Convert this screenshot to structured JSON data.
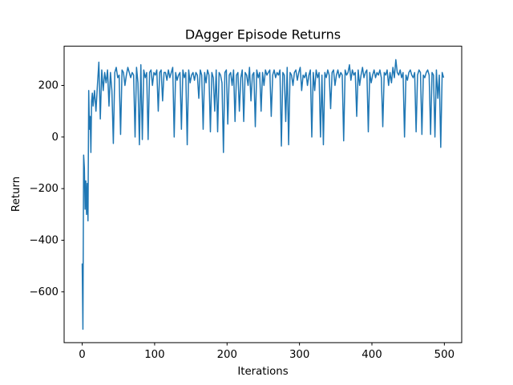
{
  "chart_data": {
    "type": "line",
    "title": "DAgger Episode Returns",
    "x_label": "Iterations",
    "y_label": "Return",
    "color": "#1f77b4",
    "x": [
      0,
      1,
      2,
      3,
      4,
      5,
      6,
      7,
      8,
      9,
      10,
      11,
      12,
      13,
      14,
      15,
      17,
      19,
      21,
      23,
      25,
      27,
      29,
      31,
      33,
      35,
      37,
      39,
      41,
      43,
      45,
      47,
      49,
      51,
      53,
      55,
      57,
      59,
      61,
      63,
      65,
      67,
      69,
      71,
      73,
      75,
      77,
      79,
      81,
      83,
      85,
      87,
      89,
      91,
      93,
      95,
      97,
      99,
      101,
      103,
      105,
      107,
      109,
      111,
      113,
      115,
      117,
      119,
      121,
      123,
      125,
      127,
      129,
      131,
      133,
      135,
      137,
      139,
      141,
      143,
      145,
      147,
      149,
      151,
      153,
      155,
      157,
      159,
      161,
      163,
      165,
      167,
      169,
      171,
      173,
      175,
      177,
      179,
      181,
      183,
      185,
      187,
      189,
      191,
      193,
      195,
      197,
      199,
      201,
      203,
      205,
      207,
      209,
      211,
      213,
      215,
      217,
      219,
      221,
      223,
      225,
      227,
      229,
      231,
      233,
      235,
      237,
      239,
      241,
      243,
      245,
      247,
      249,
      251,
      253,
      255,
      257,
      259,
      261,
      263,
      265,
      267,
      269,
      271,
      273,
      275,
      277,
      279,
      281,
      283,
      285,
      287,
      289,
      291,
      293,
      295,
      297,
      299,
      301,
      303,
      305,
      307,
      309,
      311,
      313,
      315,
      317,
      319,
      321,
      323,
      325,
      327,
      329,
      331,
      333,
      335,
      337,
      339,
      341,
      343,
      345,
      347,
      349,
      351,
      353,
      355,
      357,
      359,
      361,
      363,
      365,
      367,
      369,
      371,
      373,
      375,
      377,
      379,
      381,
      383,
      385,
      387,
      389,
      391,
      393,
      395,
      397,
      399,
      401,
      403,
      405,
      407,
      409,
      411,
      413,
      415,
      417,
      419,
      421,
      423,
      425,
      427,
      429,
      431,
      433,
      435,
      437,
      439,
      441,
      443,
      445,
      447,
      449,
      451,
      453,
      455,
      457,
      459,
      461,
      463,
      465,
      467,
      469,
      471,
      473,
      475,
      477,
      479,
      481,
      483,
      485,
      487,
      489,
      491,
      493,
      495,
      497,
      499
    ],
    "values": [
      -490,
      -745,
      -70,
      -120,
      -280,
      -170,
      -300,
      -180,
      -325,
      180,
      30,
      80,
      -60,
      140,
      170,
      120,
      180,
      100,
      200,
      290,
      70,
      260,
      180,
      250,
      210,
      260,
      120,
      250,
      180,
      -25,
      250,
      270,
      230,
      240,
      10,
      260,
      250,
      200,
      240,
      270,
      250,
      230,
      250,
      240,
      0,
      270,
      210,
      -30,
      280,
      -10,
      260,
      230,
      250,
      -10,
      250,
      260,
      200,
      250,
      240,
      260,
      100,
      250,
      260,
      140,
      250,
      250,
      220,
      260,
      230,
      250,
      270,
      0,
      250,
      220,
      240,
      250,
      30,
      260,
      230,
      250,
      -30,
      260,
      210,
      240,
      250,
      220,
      250,
      240,
      150,
      260,
      240,
      30,
      250,
      210,
      260,
      240,
      20,
      250,
      230,
      100,
      260,
      20,
      250,
      240,
      210,
      -60,
      250,
      260,
      50,
      240,
      250,
      200,
      260,
      60,
      240,
      250,
      100,
      230,
      260,
      60,
      250,
      240,
      200,
      270,
      140,
      240,
      250,
      40,
      260,
      230,
      250,
      100,
      250,
      200,
      260,
      240,
      250,
      260,
      80,
      240,
      260,
      230,
      250,
      240,
      260,
      -35,
      250,
      240,
      60,
      270,
      -30,
      250,
      240,
      200,
      250,
      260,
      220,
      250,
      270,
      180,
      240,
      230,
      250,
      200,
      240,
      260,
      0,
      250,
      180,
      260,
      230,
      250,
      0,
      240,
      -30,
      250,
      230,
      260,
      240,
      110,
      250,
      260,
      200,
      240,
      260,
      230,
      250,
      240,
      -15,
      260,
      240,
      250,
      280,
      220,
      260,
      240,
      250,
      80,
      260,
      200,
      240,
      270,
      230,
      250,
      260,
      20,
      250,
      210,
      240,
      260,
      230,
      250,
      240,
      260,
      230,
      40,
      250,
      240,
      260,
      200,
      250,
      210,
      270,
      230,
      300,
      250,
      240,
      260,
      230,
      250,
      0,
      240,
      220,
      250,
      260,
      240,
      230,
      250,
      20,
      240,
      260,
      250,
      10,
      240,
      230,
      250,
      260,
      240,
      10,
      250,
      240,
      0,
      260,
      150,
      240,
      -40,
      250,
      230
    ],
    "xlim": [
      -24.95,
      523.95
    ],
    "ylim": [
      -797,
      352
    ],
    "xticks": [
      0,
      100,
      200,
      300,
      400,
      500
    ],
    "yticks": [
      {
        "value": -600,
        "label": "−600"
      },
      {
        "value": -400,
        "label": "−400"
      },
      {
        "value": -200,
        "label": "−200"
      },
      0,
      200
    ],
    "grid": false
  }
}
